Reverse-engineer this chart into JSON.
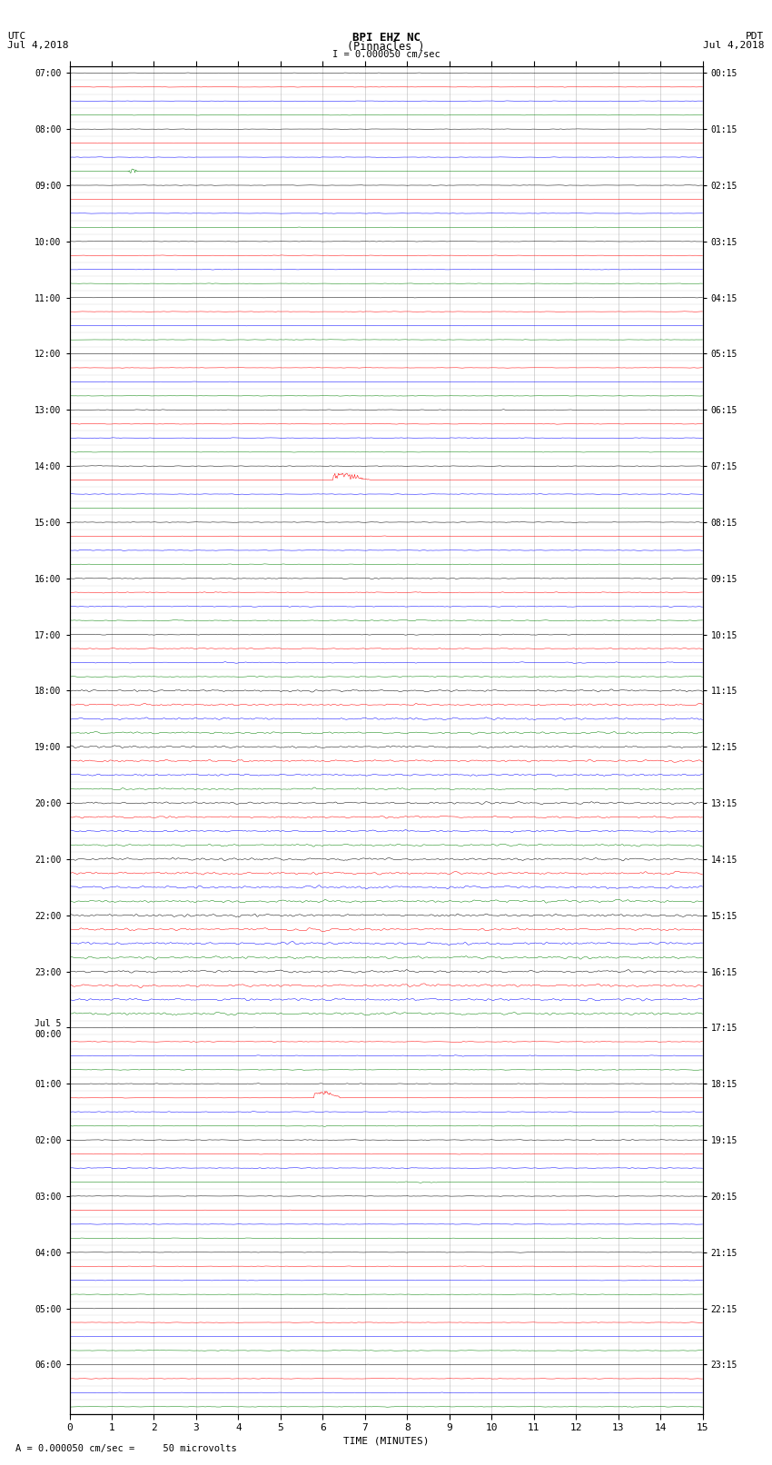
{
  "title_line1": "BPI EHZ NC",
  "title_line2": "(Pinnacles )",
  "scale_label": "I = 0.000050 cm/sec",
  "left_label_top": "UTC",
  "left_label_date": "Jul 4,2018",
  "right_label_top": "PDT",
  "right_label_date": "Jul 4,2018",
  "bottom_label": "TIME (MINUTES)",
  "footer_label": "= 0.000050 cm/sec =     50 microvolts",
  "x_min": 0,
  "x_max": 15,
  "x_ticks": [
    0,
    1,
    2,
    3,
    4,
    5,
    6,
    7,
    8,
    9,
    10,
    11,
    12,
    13,
    14,
    15
  ],
  "n_traces": 96,
  "colors_cycle": [
    "black",
    "red",
    "blue",
    "green"
  ],
  "bg_color": "#ffffff",
  "plot_bg": "#ffffff",
  "utc_hour_labels": [
    "07:00",
    "08:00",
    "09:00",
    "10:00",
    "11:00",
    "12:00",
    "13:00",
    "14:00",
    "15:00",
    "16:00",
    "17:00",
    "18:00",
    "19:00",
    "20:00",
    "21:00",
    "22:00",
    "23:00",
    "Jul 5\n00:00",
    "01:00",
    "02:00",
    "03:00",
    "04:00",
    "05:00",
    "06:00"
  ],
  "pdt_hour_labels": [
    "00:15",
    "01:15",
    "02:15",
    "03:15",
    "04:15",
    "05:15",
    "06:15",
    "07:15",
    "08:15",
    "09:15",
    "10:15",
    "11:15",
    "12:15",
    "13:15",
    "14:15",
    "15:15",
    "16:15",
    "17:15",
    "18:15",
    "19:15",
    "20:15",
    "21:15",
    "22:15",
    "23:15"
  ],
  "seed": 12345,
  "amp_quiet": 0.025,
  "amp_moderate": 0.08,
  "amp_active": 0.18,
  "amp_very_active": 0.35
}
